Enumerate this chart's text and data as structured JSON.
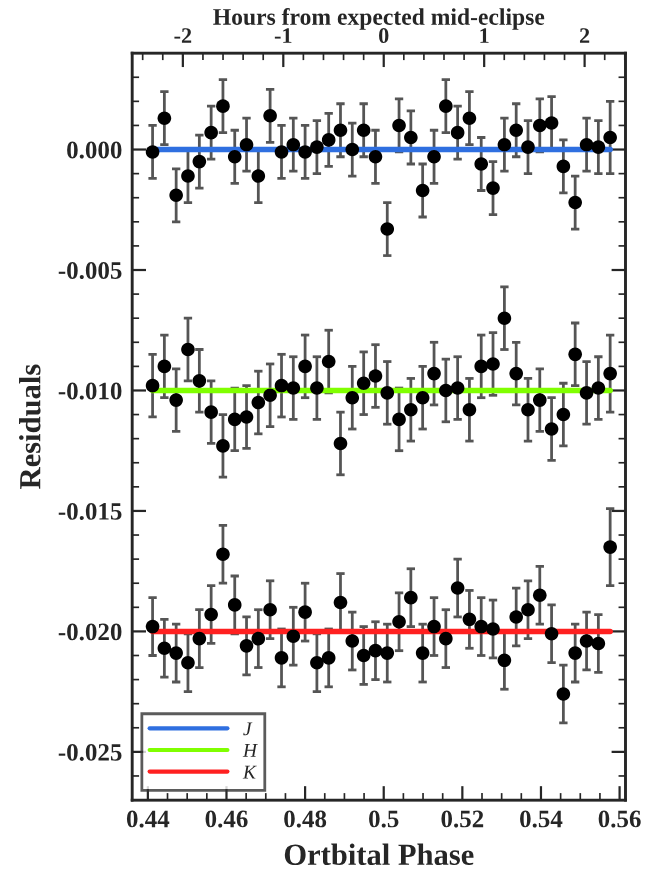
{
  "chart_data": {
    "type": "scatter",
    "xlabel": "Ortbital Phase",
    "ylabel": "Residuals",
    "x2label": "Hours from expected mid-eclipse",
    "xlim": [
      0.436,
      0.5615
    ],
    "xticks": [
      0.44,
      0.46,
      0.48,
      0.5,
      0.52,
      0.54,
      0.56
    ],
    "x2lim": [
      -2.505,
      2.407
    ],
    "x2ticks": [
      -2,
      -1,
      0,
      1,
      2
    ],
    "ylim": [
      -0.027,
      0.004
    ],
    "yticks": [
      {
        "value": -0.025,
        "label": "-0.025"
      },
      {
        "value": -0.02,
        "label": "-0.020"
      },
      {
        "value": -0.015,
        "label": "-0.015"
      },
      {
        "value": -0.01,
        "label": "-0.010"
      },
      {
        "value": -0.005,
        "label": "-0.005"
      },
      {
        "value": 0,
        "label": "0.000"
      }
    ],
    "marker": "circle",
    "legend": "bottom left",
    "grid": false,
    "series": [
      {
        "color": "#000000",
        "x": [
          0.4412,
          0.4442,
          0.4472,
          0.4502,
          0.4531,
          0.4561,
          0.4591,
          0.4621,
          0.4651,
          0.4681,
          0.4711,
          0.474,
          0.477,
          0.48,
          0.483,
          0.486,
          0.489,
          0.492,
          0.4949,
          0.4979,
          0.5009,
          0.5039,
          0.5069,
          0.5099,
          0.5128,
          0.5158,
          0.5188,
          0.5218,
          0.5248,
          0.5278,
          0.5307,
          0.5337,
          0.5367,
          0.5397,
          0.5427,
          0.5457,
          0.5487,
          0.5516,
          0.5546,
          0.5576
        ],
        "values": [
          -0.0001,
          0.0013,
          -0.0019,
          -0.0011,
          -0.0005,
          0.0007,
          0.0018,
          -0.0003,
          0.0002,
          -0.0011,
          0.0014,
          -0.0001,
          0.0002,
          -0.0001,
          0.0001,
          0.0004,
          0.0008,
          0.0,
          0.0008,
          -0.0003,
          -0.0033,
          0.001,
          0.0005,
          -0.0017,
          -0.0003,
          0.0018,
          0.0007,
          0.0013,
          -0.0006,
          -0.0016,
          0.0002,
          0.0008,
          0.0001,
          0.001,
          0.0011,
          -0.0007,
          -0.0022,
          0.0002,
          0.0001,
          0.0005
        ],
        "errors": [
          0.0011,
          0.0011,
          0.0011,
          0.0011,
          0.0011,
          0.0011,
          0.0011,
          0.0011,
          0.0011,
          0.0011,
          0.0011,
          0.0011,
          0.0011,
          0.0011,
          0.0011,
          0.0011,
          0.0011,
          0.0011,
          0.0011,
          0.0011,
          0.0011,
          0.0011,
          0.0011,
          0.0011,
          0.0011,
          0.0011,
          0.0011,
          0.0011,
          0.0011,
          0.0011,
          0.0011,
          0.0011,
          0.0011,
          0.0011,
          0.0011,
          0.0011,
          0.0011,
          0.0011,
          0.0011,
          0.0015
        ]
      },
      {
        "color": "#000000",
        "x": [
          0.4412,
          0.4442,
          0.4472,
          0.4502,
          0.4531,
          0.4561,
          0.4591,
          0.4621,
          0.4651,
          0.4681,
          0.4711,
          0.474,
          0.477,
          0.48,
          0.483,
          0.486,
          0.489,
          0.492,
          0.4949,
          0.4979,
          0.5009,
          0.5039,
          0.5069,
          0.5099,
          0.5128,
          0.5158,
          0.5188,
          0.5218,
          0.5248,
          0.5278,
          0.5307,
          0.5337,
          0.5367,
          0.5397,
          0.5427,
          0.5457,
          0.5487,
          0.5516,
          0.5546,
          0.5576
        ],
        "values": [
          -0.0098,
          -0.009,
          -0.0104,
          -0.0083,
          -0.0096,
          -0.0109,
          -0.0123,
          -0.0112,
          -0.0111,
          -0.0105,
          -0.0102,
          -0.0098,
          -0.0099,
          -0.009,
          -0.0099,
          -0.0088,
          -0.0122,
          -0.0103,
          -0.0097,
          -0.0094,
          -0.0101,
          -0.0112,
          -0.0108,
          -0.0103,
          -0.0093,
          -0.01,
          -0.0099,
          -0.0108,
          -0.009,
          -0.0089,
          -0.007,
          -0.0093,
          -0.0108,
          -0.0104,
          -0.0116,
          -0.011,
          -0.0085,
          -0.0101,
          -0.0099,
          -0.0093
        ],
        "errors": [
          0.0013,
          0.0013,
          0.0013,
          0.0013,
          0.0013,
          0.0013,
          0.0013,
          0.0013,
          0.0013,
          0.0013,
          0.0013,
          0.0013,
          0.0013,
          0.0013,
          0.0013,
          0.0013,
          0.0013,
          0.0013,
          0.0013,
          0.0013,
          0.0013,
          0.0013,
          0.0013,
          0.0013,
          0.0013,
          0.0013,
          0.0013,
          0.0013,
          0.0013,
          0.0013,
          0.0013,
          0.0013,
          0.0013,
          0.0013,
          0.0013,
          0.0013,
          0.0013,
          0.0013,
          0.0013,
          0.0016
        ]
      },
      {
        "color": "#000000",
        "x": [
          0.4412,
          0.4442,
          0.4472,
          0.4502,
          0.4531,
          0.4561,
          0.4591,
          0.4621,
          0.4651,
          0.4681,
          0.4711,
          0.474,
          0.477,
          0.48,
          0.483,
          0.486,
          0.489,
          0.492,
          0.4949,
          0.4979,
          0.5009,
          0.5039,
          0.5069,
          0.5099,
          0.5128,
          0.5158,
          0.5188,
          0.5218,
          0.5248,
          0.5278,
          0.5307,
          0.5337,
          0.5367,
          0.5397,
          0.5427,
          0.5457,
          0.5487,
          0.5516,
          0.5546,
          0.5576
        ],
        "values": [
          -0.0198,
          -0.0207,
          -0.0209,
          -0.0213,
          -0.0203,
          -0.0193,
          -0.0168,
          -0.0189,
          -0.0206,
          -0.0203,
          -0.0191,
          -0.0211,
          -0.0202,
          -0.0192,
          -0.0213,
          -0.0211,
          -0.0188,
          -0.0204,
          -0.021,
          -0.0208,
          -0.0209,
          -0.0196,
          -0.0186,
          -0.0209,
          -0.0198,
          -0.0203,
          -0.0182,
          -0.0195,
          -0.0198,
          -0.0199,
          -0.0212,
          -0.0194,
          -0.0191,
          -0.0185,
          -0.0201,
          -0.0226,
          -0.0209,
          -0.0204,
          -0.0205,
          -0.0165
        ],
        "errors": [
          0.0012,
          0.0012,
          0.0012,
          0.0012,
          0.0012,
          0.0012,
          0.0012,
          0.0012,
          0.0012,
          0.0012,
          0.0012,
          0.0012,
          0.0012,
          0.0012,
          0.0012,
          0.0012,
          0.0012,
          0.0012,
          0.0012,
          0.0012,
          0.0012,
          0.0012,
          0.0012,
          0.0012,
          0.0012,
          0.0012,
          0.0012,
          0.0012,
          0.0012,
          0.0012,
          0.0012,
          0.0012,
          0.0012,
          0.0012,
          0.0012,
          0.0012,
          0.0012,
          0.0012,
          0.0012,
          0.0016
        ]
      },
      {
        "type": "line",
        "marker": "none",
        "name": "J",
        "color": "#2f6fe0",
        "x": [
          0.4412,
          0.5576
        ],
        "values": [
          0.0,
          0.0
        ]
      },
      {
        "type": "line",
        "marker": "none",
        "name": "H",
        "color": "#80ff00",
        "x": [
          0.4412,
          0.5576
        ],
        "values": [
          -0.01,
          -0.01
        ]
      },
      {
        "type": "line",
        "marker": "none",
        "name": "K",
        "color": "#ff2020",
        "x": [
          0.4412,
          0.5576
        ],
        "values": [
          -0.02,
          -0.02
        ]
      }
    ]
  }
}
